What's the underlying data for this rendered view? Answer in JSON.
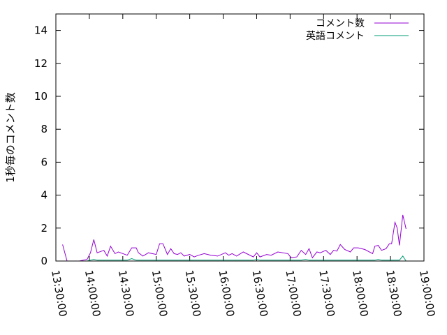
{
  "chart_data": {
    "type": "line",
    "title": "",
    "xlabel": "",
    "ylabel": "1秒毎のコメント数",
    "xlim": [
      "13:30:00",
      "19:00:00"
    ],
    "ylim": [
      0,
      15
    ],
    "xticks": [
      "13:30:00",
      "14:00:00",
      "14:30:00",
      "15:00:00",
      "15:30:00",
      "16:00:00",
      "16:30:00",
      "17:00:00",
      "17:30:00",
      "18:00:00",
      "18:30:00",
      "19:00:00"
    ],
    "yticks": [
      0,
      2,
      4,
      6,
      8,
      10,
      12,
      14
    ],
    "grid": false,
    "legend_position": "top-right",
    "x": [
      "13:36",
      "13:40",
      "13:51",
      "13:58",
      "14:01",
      "14:04",
      "14:07",
      "14:13",
      "14:16",
      "14:19",
      "14:23",
      "14:26",
      "14:34",
      "14:38",
      "14:42",
      "14:44",
      "14:48",
      "14:53",
      "15:00",
      "15:03",
      "15:06",
      "15:10",
      "15:13",
      "15:16",
      "15:19",
      "15:22",
      "15:25",
      "15:30",
      "15:34",
      "15:38",
      "15:43",
      "15:49",
      "15:55",
      "16:02",
      "16:05",
      "16:08",
      "16:12",
      "16:18",
      "16:27",
      "16:30",
      "16:33",
      "16:39",
      "16:43",
      "16:49",
      "16:58",
      "17:01",
      "17:06",
      "17:10",
      "17:14",
      "17:17",
      "17:20",
      "17:24",
      "17:27",
      "17:32",
      "17:36",
      "17:39",
      "17:42",
      "17:45",
      "17:49",
      "17:54",
      "17:57",
      "18:01",
      "18:07",
      "18:14",
      "18:16",
      "18:19",
      "18:22",
      "18:26",
      "18:29",
      "18:31",
      "18:34",
      "18:36",
      "18:38",
      "18:41",
      "18:44"
    ],
    "series": [
      {
        "name": "コメント数",
        "color": "#9400d3",
        "values": [
          1.0,
          0,
          0,
          0.1,
          0.5,
          1.3,
          0.5,
          0.65,
          0.3,
          0.9,
          0.45,
          0.55,
          0.35,
          0.8,
          0.8,
          0.5,
          0.3,
          0.5,
          0.4,
          1.05,
          1.05,
          0.4,
          0.75,
          0.45,
          0.4,
          0.5,
          0.3,
          0.4,
          0.25,
          0.35,
          0.45,
          0.35,
          0.3,
          0.5,
          0.35,
          0.45,
          0.3,
          0.55,
          0.25,
          0.5,
          0.25,
          0.4,
          0.35,
          0.55,
          0.45,
          0.2,
          0.25,
          0.65,
          0.4,
          0.75,
          0.2,
          0.55,
          0.5,
          0.65,
          0.4,
          0.65,
          0.6,
          1.0,
          0.7,
          0.55,
          0.8,
          0.8,
          0.7,
          0.45,
          0.9,
          0.95,
          0.65,
          0.75,
          1.05,
          1.05,
          2.35,
          2.0,
          0.95,
          2.8,
          1.95
        ]
      },
      {
        "name": "英語コメント",
        "color": "#009e73",
        "values": [
          0,
          0,
          0,
          0,
          0.05,
          0.1,
          0.05,
          0.05,
          0.05,
          0.05,
          0.05,
          0.05,
          0.05,
          0.15,
          0.05,
          0.05,
          0.05,
          0.05,
          0.05,
          0.05,
          0.05,
          0.05,
          0.05,
          0.05,
          0.05,
          0.05,
          0.05,
          0.05,
          0.05,
          0.05,
          0.05,
          0.05,
          0.05,
          0.05,
          0.05,
          0.05,
          0.05,
          0.05,
          0.05,
          0.1,
          0.05,
          0.05,
          0.05,
          0.05,
          0.05,
          0.05,
          0.05,
          0.05,
          0.1,
          0.05,
          0.05,
          0.05,
          0.05,
          0.05,
          0.05,
          0.05,
          0.05,
          0.05,
          0.05,
          0.05,
          0.05,
          0.05,
          0.05,
          0.05,
          0.05,
          0.1,
          0.05,
          0.05,
          0.05,
          0.05,
          0.05,
          0.05,
          0.05,
          0.3,
          0
        ]
      }
    ]
  }
}
